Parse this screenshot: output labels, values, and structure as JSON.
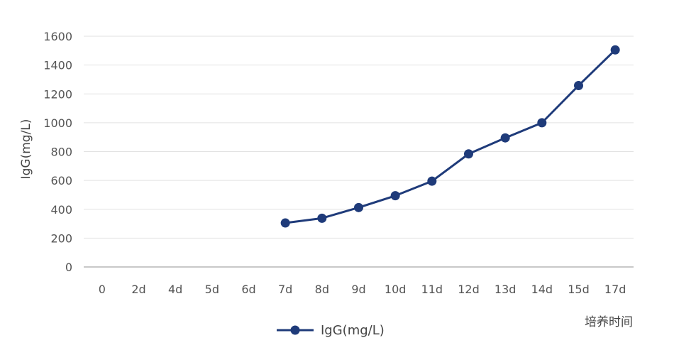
{
  "chart_data": {
    "type": "line",
    "categories": [
      "0",
      "2d",
      "4d",
      "5d",
      "6d",
      "7d",
      "8d",
      "9d",
      "10d",
      "11d",
      "12d",
      "13d",
      "14d",
      "15d",
      "17d"
    ],
    "series": [
      {
        "name": "IgG(mg/L)",
        "color": "#1f3b7a",
        "values": [
          null,
          null,
          null,
          null,
          null,
          305,
          338,
          412,
          494,
          595,
          784,
          895,
          1000,
          1258,
          1505
        ]
      }
    ],
    "ylabel": "IgG(mg/L)",
    "xlabel": "培养时间",
    "ylim": [
      0,
      1600
    ],
    "yticks": [
      0,
      200,
      400,
      600,
      800,
      1000,
      1200,
      1400,
      1600
    ],
    "grid": true,
    "legend": "bottom"
  }
}
